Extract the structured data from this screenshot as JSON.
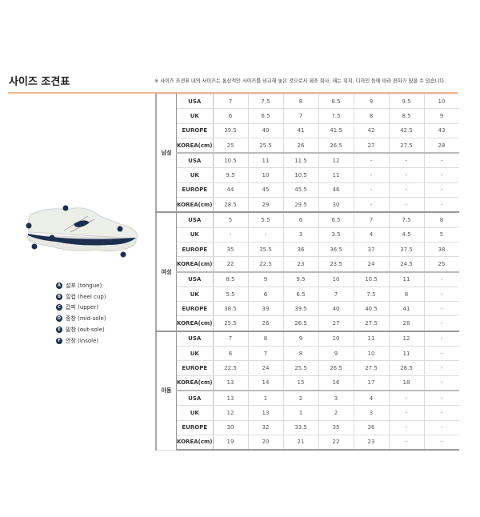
{
  "title": "사이즈 조견표",
  "notice": "※ 사이즈 조견표 내의 사이즈는 통상적인 사이즈를 비교해 놓은 것으로서 제조 회사, 재는 위치, 디자인 등에 따라 편차가 있을 수 있습니다.",
  "legend": [
    {
      "badge": "A",
      "label": "설포 (tongue)"
    },
    {
      "badge": "B",
      "label": "힐컵 (heel cup)"
    },
    {
      "badge": "C",
      "label": "갑피 (upper)"
    },
    {
      "badge": "D",
      "label": "중창 (mid-sole)"
    },
    {
      "badge": "E",
      "label": "밑창 (out-sole)"
    },
    {
      "badge": "F",
      "label": "안창 (insole)"
    }
  ],
  "groups": [
    {
      "name": "남성",
      "blocks": [
        [
          [
            "USA",
            "7",
            "7.5",
            "8",
            "8.5",
            "9",
            "9.5",
            "10"
          ],
          [
            "UK",
            "6",
            "6.5",
            "7",
            "7.5",
            "8",
            "8.5",
            "9"
          ],
          [
            "EUROPE",
            "39.5",
            "40",
            "41",
            "41.5",
            "42",
            "42.5",
            "43"
          ],
          [
            "KOREA(cm)",
            "25",
            "25.5",
            "26",
            "26.5",
            "27",
            "27.5",
            "28"
          ]
        ],
        [
          [
            "USA",
            "10.5",
            "11",
            "11.5",
            "12",
            "-",
            "-",
            "-"
          ],
          [
            "UK",
            "9.5",
            "10",
            "10.5",
            "11",
            "-",
            "-",
            "-"
          ],
          [
            "EUROPE",
            "44",
            "45",
            "45.5",
            "46",
            "-",
            "-",
            "-"
          ],
          [
            "KOREA(cm)",
            "28.5",
            "29",
            "29.5",
            "30",
            "-",
            "-",
            "-"
          ]
        ]
      ]
    },
    {
      "name": "여성",
      "blocks": [
        [
          [
            "USA",
            "5",
            "5.5",
            "6",
            "6.5",
            "7",
            "7.5",
            "8"
          ],
          [
            "UK",
            "-",
            "-",
            "3",
            "3.5",
            "4",
            "4.5",
            "5"
          ],
          [
            "EUROPE",
            "35",
            "35.5",
            "36",
            "36.5",
            "37",
            "37.5",
            "38"
          ],
          [
            "KOREA(cm)",
            "22",
            "22.5",
            "23",
            "23.5",
            "24",
            "24.5",
            "25"
          ]
        ],
        [
          [
            "USA",
            "8.5",
            "9",
            "9.5",
            "10",
            "10.5",
            "11",
            "-"
          ],
          [
            "UK",
            "5.5",
            "6",
            "6.5",
            "7",
            "7.5",
            "8",
            "-"
          ],
          [
            "EUROPE",
            "38.5",
            "39",
            "39.5",
            "40",
            "40.5",
            "41",
            "-"
          ],
          [
            "KOREA(cm)",
            "25.5",
            "26",
            "26.5",
            "27",
            "27.5",
            "28",
            "-"
          ]
        ]
      ]
    },
    {
      "name": "아동",
      "blocks": [
        [
          [
            "USA",
            "7",
            "8",
            "9",
            "10",
            "11",
            "12",
            "-"
          ],
          [
            "UK",
            "6",
            "7",
            "8",
            "9",
            "10",
            "11",
            "-"
          ],
          [
            "EUROPE",
            "22.5",
            "24",
            "25.5",
            "26.5",
            "27.5",
            "28.5",
            "-"
          ],
          [
            "KOREA(cm)",
            "13",
            "14",
            "15",
            "16",
            "17",
            "18",
            "-"
          ]
        ],
        [
          [
            "USA",
            "13",
            "1",
            "2",
            "3",
            "4",
            "-",
            "-"
          ],
          [
            "UK",
            "12",
            "13",
            "1",
            "2",
            "3",
            "-",
            "-"
          ],
          [
            "EUROPE",
            "30",
            "32",
            "33.5",
            "35",
            "36",
            "-",
            "-"
          ],
          [
            "KOREA(cm)",
            "19",
            "20",
            "21",
            "22",
            "23",
            "-",
            "-"
          ]
        ]
      ]
    }
  ]
}
